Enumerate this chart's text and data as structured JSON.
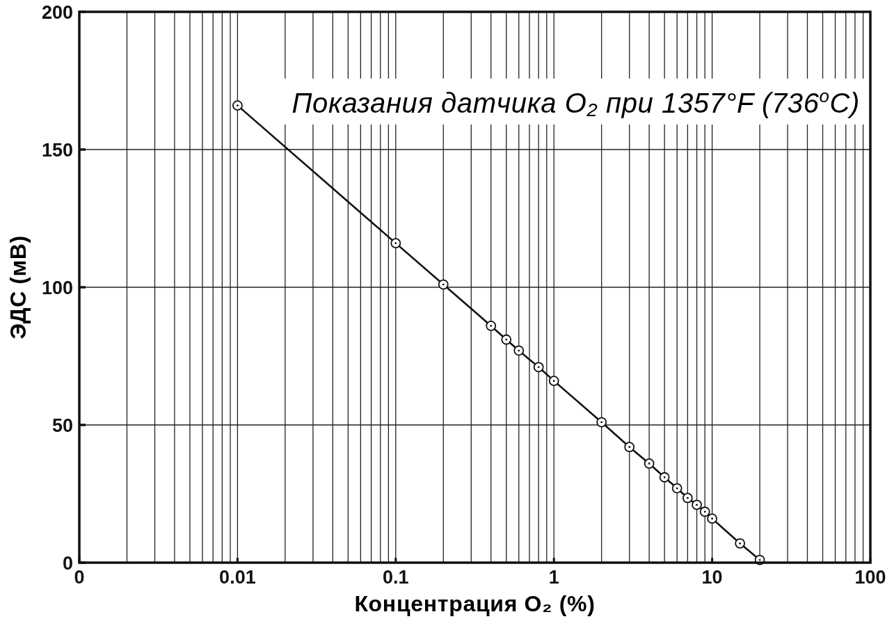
{
  "chart_data": {
    "type": "line",
    "title": "Показания датчика O₂ при 1357°F (736$^{o}$C)",
    "xlabel": "Концентрация O₂ (%)",
    "ylabel": "ЭДС (мВ)",
    "x": [
      0.01,
      0.1,
      0.2,
      0.4,
      0.5,
      0.6,
      0.8,
      1,
      2,
      3,
      4,
      5,
      6,
      7,
      8,
      9,
      10,
      15,
      20
    ],
    "values": [
      166,
      116,
      101,
      86,
      81,
      77,
      71,
      66,
      51,
      42,
      36,
      31,
      27,
      23.5,
      21,
      18.5,
      16,
      7,
      1
    ],
    "color": "#111111",
    "marker": "circle",
    "line_style": "solid",
    "log": "x",
    "grid": true,
    "xlim": [
      0.001,
      100
    ],
    "ylim": [
      0,
      200
    ],
    "xticks": [
      {
        "value": 0.001,
        "label": "0"
      },
      {
        "value": 0.002,
        "label": null
      },
      {
        "value": 0.003,
        "label": null
      },
      {
        "value": 0.004,
        "label": null
      },
      {
        "value": 0.005,
        "label": null
      },
      {
        "value": 0.006,
        "label": null
      },
      {
        "value": 0.007,
        "label": null
      },
      {
        "value": 0.008,
        "label": null
      },
      {
        "value": 0.009,
        "label": null
      },
      0.01,
      {
        "value": 0.02,
        "label": null
      },
      {
        "value": 0.03,
        "label": null
      },
      {
        "value": 0.04,
        "label": null
      },
      {
        "value": 0.05,
        "label": null
      },
      {
        "value": 0.06,
        "label": null
      },
      {
        "value": 0.07,
        "label": null
      },
      {
        "value": 0.08,
        "label": null
      },
      {
        "value": 0.09,
        "label": null
      },
      0.1,
      {
        "value": 0.2,
        "label": null
      },
      {
        "value": 0.3,
        "label": null
      },
      {
        "value": 0.4,
        "label": null
      },
      {
        "value": 0.5,
        "label": null
      },
      {
        "value": 0.6,
        "label": null
      },
      {
        "value": 0.7,
        "label": null
      },
      {
        "value": 0.8,
        "label": null
      },
      {
        "value": 0.9,
        "label": null
      },
      1,
      {
        "value": 2,
        "label": null
      },
      {
        "value": 3,
        "label": null
      },
      {
        "value": 4,
        "label": null
      },
      {
        "value": 5,
        "label": null
      },
      {
        "value": 6,
        "label": null
      },
      {
        "value": 7,
        "label": null
      },
      {
        "value": 8,
        "label": null
      },
      {
        "value": 9,
        "label": null
      },
      10,
      {
        "value": 20,
        "label": null
      },
      {
        "value": 30,
        "label": null
      },
      {
        "value": 40,
        "label": null
      },
      {
        "value": 50,
        "label": null
      },
      {
        "value": 60,
        "label": null
      },
      {
        "value": 70,
        "label": null
      },
      {
        "value": 80,
        "label": null
      },
      {
        "value": 90,
        "label": null
      },
      100
    ],
    "yticks": [
      0,
      50,
      100,
      150,
      200
    ]
  }
}
